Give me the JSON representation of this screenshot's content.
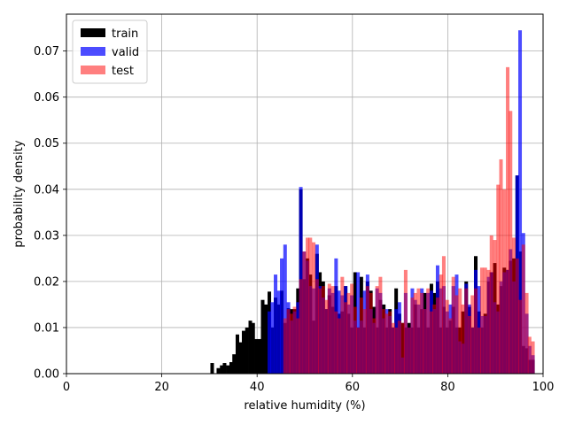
{
  "chart_data": {
    "type": "bar",
    "subtype": "histogram",
    "xlabel": "relative humidity (%)",
    "ylabel": "probability density",
    "xlim": [
      0,
      100
    ],
    "ylim": [
      0,
      0.078
    ],
    "x_ticks": [
      0,
      20,
      40,
      60,
      80,
      100
    ],
    "y_ticks": [
      0.0,
      0.01,
      0.02,
      0.03,
      0.04,
      0.05,
      0.06,
      0.07
    ],
    "x_tick_labels": [
      "0",
      "20",
      "40",
      "60",
      "80",
      "100"
    ],
    "y_tick_labels": [
      "0.00",
      "0.01",
      "0.02",
      "0.03",
      "0.04",
      "0.05",
      "0.06",
      "0.07"
    ],
    "grid": true,
    "legend_position": "top-left",
    "series": [
      {
        "name": "train",
        "color": "#000000",
        "opacity": 1.0,
        "bin_width": 0.67,
        "bins": [
          [
            30.2,
            0.0023
          ],
          [
            31.5,
            0.0012
          ],
          [
            32.2,
            0.0018
          ],
          [
            32.8,
            0.0023
          ],
          [
            33.5,
            0.0018
          ],
          [
            34.2,
            0.0025
          ],
          [
            34.8,
            0.0042
          ],
          [
            35.5,
            0.0085
          ],
          [
            36.2,
            0.0068
          ],
          [
            36.8,
            0.0093
          ],
          [
            37.5,
            0.01
          ],
          [
            38.2,
            0.0115
          ],
          [
            38.8,
            0.011
          ],
          [
            39.5,
            0.0075
          ],
          [
            40.2,
            0.0075
          ],
          [
            40.8,
            0.016
          ],
          [
            41.5,
            0.015
          ],
          [
            42.2,
            0.0178
          ],
          [
            42.8,
            0.01
          ],
          [
            43.5,
            0.0165
          ],
          [
            44.2,
            0.015
          ],
          [
            44.8,
            0.018
          ],
          [
            45.5,
            0.011
          ],
          [
            46.2,
            0.0142
          ],
          [
            46.8,
            0.014
          ],
          [
            47.5,
            0.014
          ],
          [
            48.2,
            0.0185
          ],
          [
            48.8,
            0.04
          ],
          [
            49.5,
            0.0205
          ],
          [
            50.2,
            0.025
          ],
          [
            50.8,
            0.0215
          ],
          [
            51.5,
            0.0115
          ],
          [
            52.2,
            0.026
          ],
          [
            52.8,
            0.022
          ],
          [
            53.5,
            0.02
          ],
          [
            54.2,
            0.014
          ],
          [
            54.8,
            0.017
          ],
          [
            55.5,
            0.0145
          ],
          [
            56.2,
            0.019
          ],
          [
            56.8,
            0.013
          ],
          [
            57.5,
            0.0135
          ],
          [
            58.2,
            0.019
          ],
          [
            58.8,
            0.013
          ],
          [
            59.5,
            0.01
          ],
          [
            60.2,
            0.022
          ],
          [
            60.8,
            0.01
          ],
          [
            61.5,
            0.021
          ],
          [
            62.2,
            0.01
          ],
          [
            62.8,
            0.02
          ],
          [
            63.5,
            0.018
          ],
          [
            64.2,
            0.0145
          ],
          [
            64.8,
            0.01
          ],
          [
            65.5,
            0.016
          ],
          [
            66.2,
            0.015
          ],
          [
            66.8,
            0.01
          ],
          [
            67.5,
            0.014
          ],
          [
            68.2,
            0.01
          ],
          [
            68.8,
            0.0185
          ],
          [
            69.5,
            0.013
          ],
          [
            70.2,
            0.011
          ],
          [
            70.8,
            0.01
          ],
          [
            71.5,
            0.011
          ],
          [
            72.2,
            0.01
          ],
          [
            72.8,
            0.015
          ],
          [
            73.5,
            0.01
          ],
          [
            74.2,
            0.014
          ],
          [
            74.8,
            0.0175
          ],
          [
            75.5,
            0.01
          ],
          [
            76.2,
            0.0195
          ],
          [
            76.8,
            0.0175
          ],
          [
            77.5,
            0.02
          ],
          [
            78.2,
            0.01
          ],
          [
            78.8,
            0.0145
          ],
          [
            79.5,
            0.01
          ],
          [
            80.2,
            0.0115
          ],
          [
            80.8,
            0.0145
          ],
          [
            81.5,
            0.01
          ],
          [
            82.2,
            0.01
          ],
          [
            82.8,
            0.0135
          ],
          [
            83.5,
            0.02
          ],
          [
            84.2,
            0.0145
          ],
          [
            84.8,
            0.01
          ],
          [
            85.5,
            0.0255
          ],
          [
            86.2,
            0.0135
          ],
          [
            86.8,
            0.01
          ],
          [
            87.5,
            0.013
          ],
          [
            88.2,
            0.02
          ],
          [
            88.8,
            0.022
          ],
          [
            89.5,
            0.024
          ],
          [
            90.2,
            0.015
          ],
          [
            90.8,
            0.019
          ],
          [
            91.5,
            0.023
          ],
          [
            92.2,
            0.0225
          ],
          [
            92.8,
            0.0245
          ],
          [
            93.5,
            0.025
          ],
          [
            94.2,
            0.043
          ],
          [
            94.8,
            0.0265
          ],
          [
            95.5,
            0.006
          ],
          [
            96.2,
            0.0055
          ],
          [
            96.8,
            0.003
          ],
          [
            97.5,
            0.003
          ]
        ]
      },
      {
        "name": "valid",
        "color": "#0000ff",
        "opacity": 0.7,
        "bin_width": 0.67,
        "bins": [
          [
            42.2,
            0.0135
          ],
          [
            42.8,
            0.0155
          ],
          [
            43.5,
            0.0215
          ],
          [
            44.2,
            0.018
          ],
          [
            44.8,
            0.025
          ],
          [
            45.5,
            0.028
          ],
          [
            46.2,
            0.0155
          ],
          [
            46.8,
            0.0115
          ],
          [
            47.5,
            0.0135
          ],
          [
            48.2,
            0.0155
          ],
          [
            48.8,
            0.0405
          ],
          [
            49.5,
            0.0265
          ],
          [
            50.2,
            0.0245
          ],
          [
            50.8,
            0.019
          ],
          [
            51.5,
            0.0185
          ],
          [
            52.2,
            0.028
          ],
          [
            52.8,
            0.019
          ],
          [
            53.5,
            0.0165
          ],
          [
            54.2,
            0.014
          ],
          [
            54.8,
            0.0185
          ],
          [
            55.5,
            0.0175
          ],
          [
            56.2,
            0.025
          ],
          [
            56.8,
            0.018
          ],
          [
            57.5,
            0.017
          ],
          [
            58.2,
            0.019
          ],
          [
            58.8,
            0.015
          ],
          [
            59.5,
            0.017
          ],
          [
            60.2,
            0.0115
          ],
          [
            60.8,
            0.022
          ],
          [
            61.5,
            0.0115
          ],
          [
            62.2,
            0.018
          ],
          [
            62.8,
            0.0215
          ],
          [
            63.5,
            0.014
          ],
          [
            64.2,
            0.011
          ],
          [
            64.8,
            0.0185
          ],
          [
            65.5,
            0.0175
          ],
          [
            66.2,
            0.012
          ],
          [
            66.8,
            0.014
          ],
          [
            67.5,
            0.0125
          ],
          [
            68.2,
            0.01
          ],
          [
            68.8,
            0.014
          ],
          [
            69.5,
            0.0155
          ],
          [
            70.2,
            0.0035
          ],
          [
            70.8,
            0.0175
          ],
          [
            71.5,
            0.01
          ],
          [
            72.2,
            0.0185
          ],
          [
            72.8,
            0.016
          ],
          [
            73.5,
            0.015
          ],
          [
            74.2,
            0.0185
          ],
          [
            74.8,
            0.014
          ],
          [
            75.5,
            0.0175
          ],
          [
            76.2,
            0.018
          ],
          [
            76.8,
            0.014
          ],
          [
            77.5,
            0.0235
          ],
          [
            78.2,
            0.0185
          ],
          [
            78.8,
            0.019
          ],
          [
            79.5,
            0.0135
          ],
          [
            80.2,
            0.015
          ],
          [
            80.8,
            0.019
          ],
          [
            81.5,
            0.0215
          ],
          [
            82.2,
            0.007
          ],
          [
            82.8,
            0.0065
          ],
          [
            83.5,
            0.0195
          ],
          [
            84.2,
            0.015
          ],
          [
            84.8,
            0.01
          ],
          [
            85.5,
            0.0225
          ],
          [
            86.2,
            0.019
          ],
          [
            86.8,
            0.0125
          ],
          [
            87.5,
            0.0125
          ],
          [
            88.2,
            0.021
          ],
          [
            88.8,
            0.022
          ],
          [
            89.5,
            0.0155
          ],
          [
            90.2,
            0.0135
          ],
          [
            90.8,
            0.02
          ],
          [
            91.5,
            0.022
          ],
          [
            92.2,
            0.0225
          ],
          [
            92.8,
            0.027
          ],
          [
            93.5,
            0.02
          ],
          [
            94.2,
            0.043
          ],
          [
            94.8,
            0.0745
          ],
          [
            95.5,
            0.0305
          ],
          [
            96.2,
            0.013
          ],
          [
            96.8,
            0.006
          ],
          [
            97.5,
            0.004
          ]
        ]
      },
      {
        "name": "test",
        "color": "#ff0000",
        "opacity": 0.5,
        "bin_width": 0.67,
        "bins": [
          [
            45.5,
            0.012
          ],
          [
            46.2,
            0.014
          ],
          [
            46.8,
            0.013
          ],
          [
            47.5,
            0.0145
          ],
          [
            48.2,
            0.012
          ],
          [
            48.8,
            0.0205
          ],
          [
            49.5,
            0.0265
          ],
          [
            50.2,
            0.0295
          ],
          [
            50.8,
            0.0295
          ],
          [
            51.5,
            0.0285
          ],
          [
            52.2,
            0.0205
          ],
          [
            52.8,
            0.0185
          ],
          [
            53.5,
            0.019
          ],
          [
            54.2,
            0.016
          ],
          [
            54.8,
            0.0195
          ],
          [
            55.5,
            0.019
          ],
          [
            56.2,
            0.0135
          ],
          [
            56.8,
            0.012
          ],
          [
            57.5,
            0.021
          ],
          [
            58.2,
            0.0155
          ],
          [
            58.8,
            0.0175
          ],
          [
            59.5,
            0.0195
          ],
          [
            60.2,
            0.0145
          ],
          [
            60.8,
            0.01
          ],
          [
            61.5,
            0.0165
          ],
          [
            62.2,
            0.014
          ],
          [
            62.8,
            0.019
          ],
          [
            63.5,
            0.0175
          ],
          [
            64.2,
            0.012
          ],
          [
            64.8,
            0.019
          ],
          [
            65.5,
            0.021
          ],
          [
            66.2,
            0.014
          ],
          [
            66.8,
            0.013
          ],
          [
            67.5,
            0.0135
          ],
          [
            68.2,
            0.011
          ],
          [
            68.8,
            0.01
          ],
          [
            69.5,
            0.0115
          ],
          [
            70.2,
            0.011
          ],
          [
            70.8,
            0.0225
          ],
          [
            71.5,
            0.01
          ],
          [
            72.2,
            0.0165
          ],
          [
            72.8,
            0.0175
          ],
          [
            73.5,
            0.0185
          ],
          [
            74.2,
            0.0175
          ],
          [
            74.8,
            0.014
          ],
          [
            75.5,
            0.0185
          ],
          [
            76.2,
            0.0135
          ],
          [
            76.8,
            0.015
          ],
          [
            77.5,
            0.0165
          ],
          [
            78.2,
            0.0215
          ],
          [
            78.8,
            0.0255
          ],
          [
            79.5,
            0.016
          ],
          [
            80.2,
            0.012
          ],
          [
            80.8,
            0.021
          ],
          [
            81.5,
            0.017
          ],
          [
            82.2,
            0.0185
          ],
          [
            82.8,
            0.015
          ],
          [
            83.5,
            0.0185
          ],
          [
            84.2,
            0.0125
          ],
          [
            84.8,
            0.017
          ],
          [
            85.5,
            0.0185
          ],
          [
            86.2,
            0.01
          ],
          [
            86.8,
            0.023
          ],
          [
            87.5,
            0.023
          ],
          [
            88.2,
            0.0225
          ],
          [
            88.8,
            0.03
          ],
          [
            89.5,
            0.029
          ],
          [
            90.2,
            0.041
          ],
          [
            90.8,
            0.0465
          ],
          [
            91.5,
            0.04
          ],
          [
            92.2,
            0.0665
          ],
          [
            92.8,
            0.057
          ],
          [
            93.5,
            0.0295
          ],
          [
            94.2,
            0.025
          ],
          [
            94.8,
            0.016
          ],
          [
            95.5,
            0.028
          ],
          [
            96.2,
            0.0175
          ],
          [
            96.8,
            0.008
          ],
          [
            97.5,
            0.007
          ]
        ]
      }
    ]
  }
}
